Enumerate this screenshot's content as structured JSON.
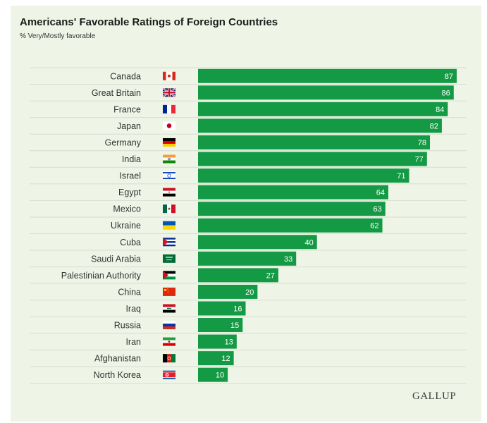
{
  "header": {
    "title": "Americans' Favorable Ratings of Foreign Countries",
    "subtitle": "% Very/Mostly favorable"
  },
  "footer": {
    "brand": "GALLUP"
  },
  "colors": {
    "bar": "#149a45",
    "background": "#eef5e6",
    "gridline": "#d7dcd2"
  },
  "chart_data": {
    "type": "bar",
    "orientation": "horizontal",
    "title": "Americans' Favorable Ratings of Foreign Countries",
    "subtitle": "% Very/Mostly favorable",
    "categories": [
      "Canada",
      "Great Britain",
      "France",
      "Japan",
      "Germany",
      "India",
      "Israel",
      "Egypt",
      "Mexico",
      "Ukraine",
      "Cuba",
      "Saudi Arabia",
      "Palestinian Authority",
      "China",
      "Iraq",
      "Russia",
      "Iran",
      "Afghanistan",
      "North Korea"
    ],
    "values": [
      87,
      86,
      84,
      82,
      78,
      77,
      71,
      64,
      63,
      62,
      40,
      33,
      27,
      20,
      16,
      15,
      13,
      12,
      10
    ],
    "flags": [
      "canada-flag-icon",
      "great-britain-flag-icon",
      "france-flag-icon",
      "japan-flag-icon",
      "germany-flag-icon",
      "india-flag-icon",
      "israel-flag-icon",
      "egypt-flag-icon",
      "mexico-flag-icon",
      "ukraine-flag-icon",
      "cuba-flag-icon",
      "saudi-arabia-flag-icon",
      "palestinian-authority-flag-icon",
      "china-flag-icon",
      "iraq-flag-icon",
      "russia-flag-icon",
      "iran-flag-icon",
      "afghanistan-flag-icon",
      "north-korea-flag-icon"
    ],
    "xlim": [
      0,
      87
    ],
    "data_labels": true,
    "grid": false,
    "legend": "none"
  }
}
